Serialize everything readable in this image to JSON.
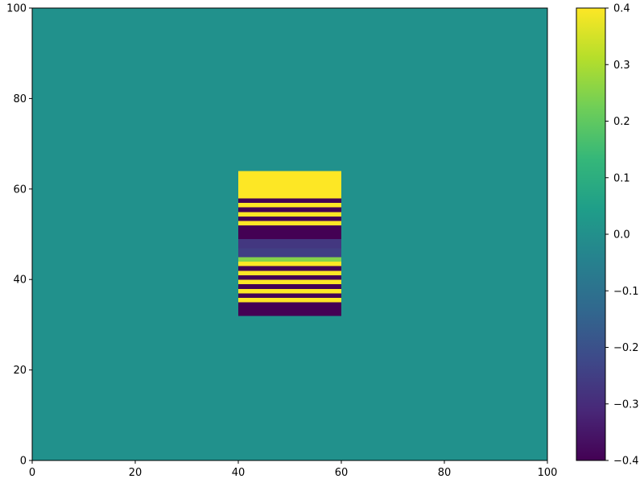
{
  "chart_data": {
    "type": "heatmap",
    "title": "",
    "xlabel": "",
    "ylabel": "",
    "xlim": [
      0,
      100
    ],
    "ylim": [
      0,
      100
    ],
    "xticks": [
      0,
      20,
      40,
      60,
      80,
      100
    ],
    "yticks": [
      0,
      20,
      40,
      60,
      80,
      100
    ],
    "grid": false,
    "colormap": "viridis",
    "background_value": 0.0,
    "background_color": "#21918c",
    "colorbar": {
      "vmin": -0.4,
      "vmax": 0.4,
      "ticks": [
        -0.4,
        -0.3,
        -0.2,
        -0.1,
        0.0,
        0.1,
        0.2,
        0.3,
        0.4
      ],
      "tick_labels": [
        "−0.4",
        "−0.3",
        "−0.2",
        "−0.1",
        "0.0",
        "0.1",
        "0.2",
        "0.3",
        "0.4"
      ]
    },
    "bands": [
      {
        "x0": 40,
        "x1": 60,
        "y0": 32,
        "y1": 35,
        "value": -0.4
      },
      {
        "x0": 40,
        "x1": 60,
        "y0": 35,
        "y1": 36,
        "value": 0.4
      },
      {
        "x0": 40,
        "x1": 60,
        "y0": 36,
        "y1": 37,
        "value": -0.4
      },
      {
        "x0": 40,
        "x1": 60,
        "y0": 37,
        "y1": 38,
        "value": 0.4
      },
      {
        "x0": 40,
        "x1": 60,
        "y0": 38,
        "y1": 39,
        "value": -0.4
      },
      {
        "x0": 40,
        "x1": 60,
        "y0": 39,
        "y1": 40,
        "value": 0.4
      },
      {
        "x0": 40,
        "x1": 60,
        "y0": 40,
        "y1": 41,
        "value": -0.4
      },
      {
        "x0": 40,
        "x1": 60,
        "y0": 41,
        "y1": 42,
        "value": 0.4
      },
      {
        "x0": 40,
        "x1": 60,
        "y0": 42,
        "y1": 43,
        "value": -0.4
      },
      {
        "x0": 40,
        "x1": 60,
        "y0": 43,
        "y1": 44,
        "value": 0.4
      },
      {
        "x0": 40,
        "x1": 60,
        "y0": 44,
        "y1": 45,
        "value": 0.25
      },
      {
        "x0": 40,
        "x1": 60,
        "y0": 45,
        "y1": 47,
        "value": -0.25
      },
      {
        "x0": 40,
        "x1": 60,
        "y0": 47,
        "y1": 49,
        "value": -0.27
      },
      {
        "x0": 40,
        "x1": 60,
        "y0": 49,
        "y1": 52,
        "value": -0.4
      },
      {
        "x0": 40,
        "x1": 60,
        "y0": 52,
        "y1": 53,
        "value": 0.4
      },
      {
        "x0": 40,
        "x1": 60,
        "y0": 53,
        "y1": 54,
        "value": -0.4
      },
      {
        "x0": 40,
        "x1": 60,
        "y0": 54,
        "y1": 55,
        "value": 0.4
      },
      {
        "x0": 40,
        "x1": 60,
        "y0": 55,
        "y1": 56,
        "value": -0.4
      },
      {
        "x0": 40,
        "x1": 60,
        "y0": 56,
        "y1": 57,
        "value": 0.4
      },
      {
        "x0": 40,
        "x1": 60,
        "y0": 57,
        "y1": 58,
        "value": -0.4
      },
      {
        "x0": 40,
        "x1": 60,
        "y0": 58,
        "y1": 64,
        "value": 0.4
      }
    ]
  }
}
